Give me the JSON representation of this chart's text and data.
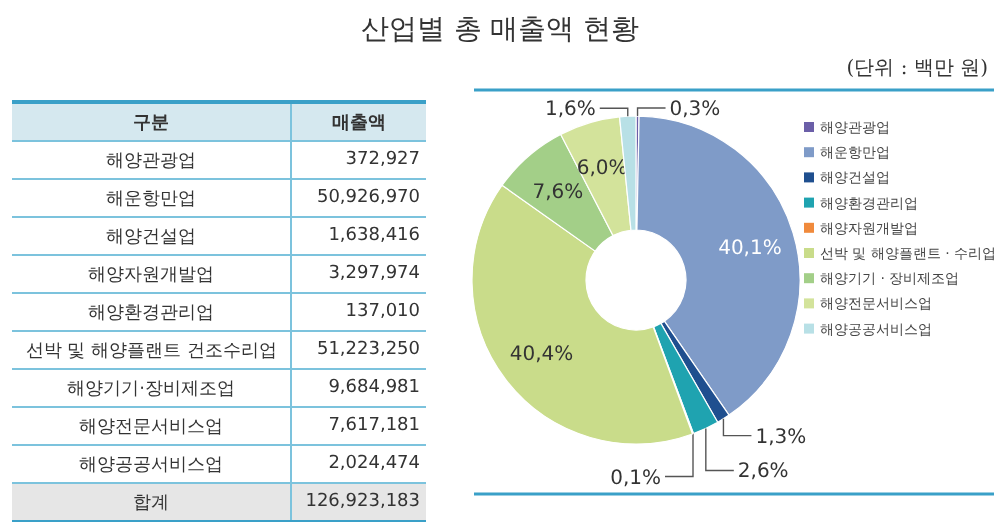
{
  "chart_data": [
    {
      "type": "other",
      "title": "산업별 총 매출액 현황",
      "xlabel": "구분",
      "ylabel": "매출액",
      "categories": [
        "해양관광업",
        "해운항만업",
        "해양건설업",
        "해양자원개발업",
        "해양환경관리업",
        "선박 및 해양플랜트 건조수리업",
        "해양기기·장비제조업",
        "해양전문서비스업",
        "해양공공서비스업"
      ],
      "values": [
        372927,
        50926970,
        1638416,
        3297974,
        137010,
        51223250,
        9684981,
        7617181,
        2024474
      ],
      "value_labels": [
        "372,927",
        "50,926,970",
        "1,638,416",
        "3,297,974",
        "137,010",
        "51,223,250",
        "9,684,981",
        "7,617,181",
        "2,024,474"
      ],
      "annotations": [
        "(단위 : 백만 원)",
        "합계",
        "126,923,183"
      ]
    },
    {
      "type": "donut",
      "legend": "right",
      "categories": [
        "해양관광업",
        "해운항만업",
        "해양건설업",
        "해양환경관리업",
        "해양자원개발업",
        "선박 및 해양플랜트 · 수리업",
        "해양기기 · 장비제조업",
        "해양전문서비스업",
        "해양공공서비스업"
      ],
      "values": [
        0.3,
        40.1,
        1.3,
        2.6,
        0.1,
        40.4,
        7.6,
        6.0,
        1.6
      ],
      "colors": [
        "#6b5fa8",
        "#7f9bc8",
        "#1f4f8f",
        "#1fa3b0",
        "#f08a3c",
        "#c9dc8a",
        "#a3cf88",
        "#d3e39b",
        "#b8e0e6"
      ],
      "value_labels": [
        "0,3%",
        "40,1%",
        "1,3%",
        "2,6%",
        "0,1%",
        "40,4%",
        "7,6%",
        "6,0%",
        "1,6%"
      ]
    }
  ]
}
